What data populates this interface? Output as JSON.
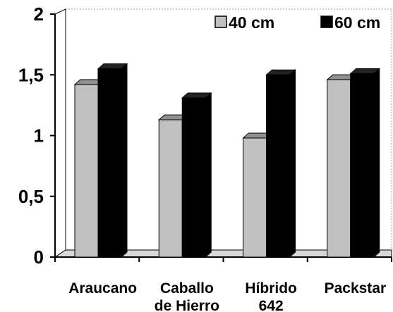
{
  "chart_data": {
    "type": "bar",
    "categories": [
      [
        "Araucano"
      ],
      [
        "Caballo",
        "de Hierro"
      ],
      [
        "Híbrido",
        "642"
      ],
      [
        "Packstar"
      ]
    ],
    "series": [
      {
        "name": "40 cm",
        "values": [
          1.42,
          1.13,
          0.98,
          1.46
        ],
        "color": "#c0c0c0"
      },
      {
        "name": "60 cm",
        "values": [
          1.55,
          1.31,
          1.5,
          1.51
        ],
        "color": "#000000"
      }
    ],
    "y_ticks": [
      "0",
      "0,5",
      "1",
      "1,5",
      "2"
    ],
    "ylim": [
      0,
      2
    ],
    "legend_position": "top-right",
    "three_d": true
  }
}
